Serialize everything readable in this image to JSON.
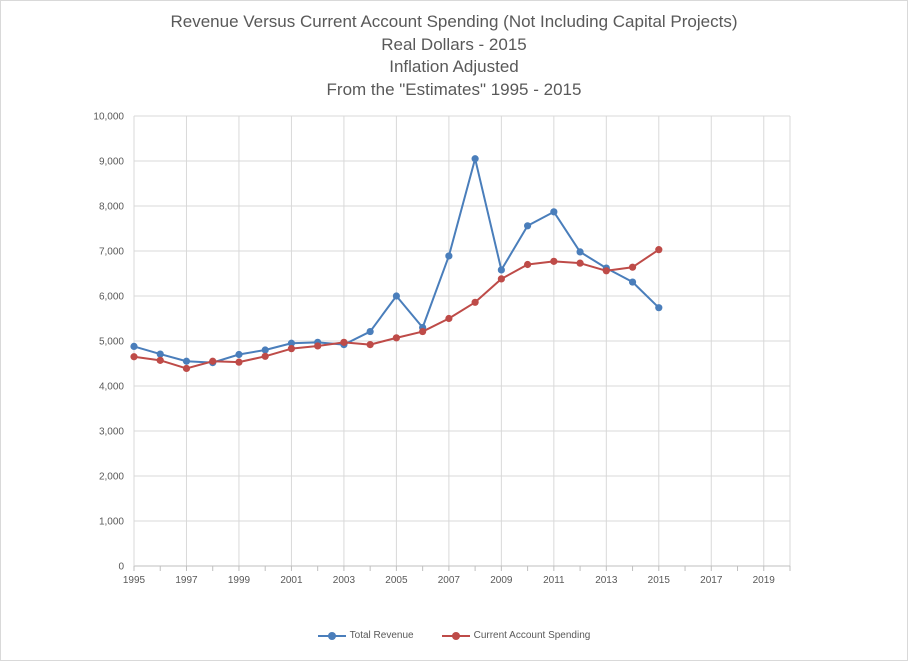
{
  "chart_data": {
    "type": "line",
    "title_lines": [
      "Revenue Versus Current Account Spending (Not Including Capital Projects)",
      "Real Dollars - 2015",
      "Inflation Adjusted",
      "From the \"Estimates\" 1995 - 2015"
    ],
    "xlabel": "",
    "ylabel": "",
    "xlim": [
      1995,
      2020
    ],
    "ylim": [
      0,
      10000
    ],
    "x_ticks": [
      "1995",
      "1997",
      "1999",
      "2001",
      "2003",
      "2005",
      "2007",
      "2009",
      "2011",
      "2013",
      "2015",
      "2017",
      "2019"
    ],
    "y_ticks": [
      "0",
      "1,000",
      "2,000",
      "3,000",
      "4,000",
      "5,000",
      "6,000",
      "7,000",
      "8,000",
      "9,000",
      "10,000"
    ],
    "grid": true,
    "legend_position": "bottom",
    "series": [
      {
        "name": "Total Revenue",
        "color": "#4a7ebb",
        "x": [
          1995,
          1996,
          1997,
          1998,
          1999,
          2000,
          2001,
          2002,
          2003,
          2004,
          2005,
          2006,
          2007,
          2008,
          2009,
          2010,
          2011,
          2012,
          2013,
          2014,
          2015
        ],
        "values": [
          4880,
          4710,
          4550,
          4520,
          4700,
          4800,
          4950,
          4970,
          4920,
          5210,
          6000,
          5300,
          6890,
          9050,
          6580,
          7560,
          7870,
          6980,
          6620,
          6310,
          5740
        ]
      },
      {
        "name": "Current Account Spending",
        "color": "#be4b48",
        "x": [
          1995,
          1996,
          1997,
          1998,
          1999,
          2000,
          2001,
          2002,
          2003,
          2004,
          2005,
          2006,
          2007,
          2008,
          2009,
          2010,
          2011,
          2012,
          2013,
          2014,
          2015
        ],
        "values": [
          4650,
          4570,
          4390,
          4550,
          4530,
          4660,
          4830,
          4890,
          4970,
          4920,
          5070,
          5210,
          5500,
          5860,
          6380,
          6700,
          6770,
          6730,
          6560,
          6640,
          7030
        ]
      }
    ]
  }
}
